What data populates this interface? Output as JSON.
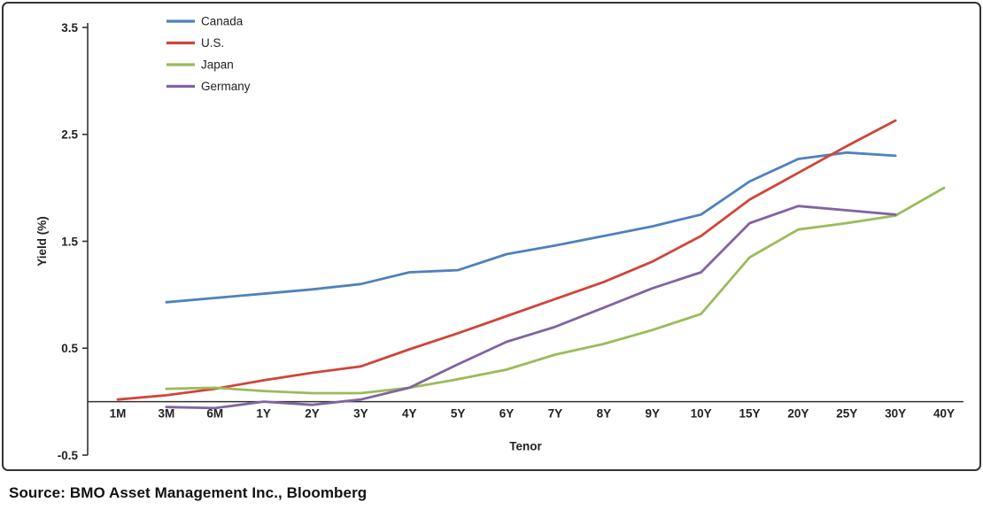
{
  "source": {
    "text": "Source: BMO Asset Management Inc., Bloomberg"
  },
  "chart_data": {
    "type": "line",
    "title": "",
    "xlabel": "Tenor",
    "ylabel": "Yield (%)",
    "ylim": [
      -0.5,
      3.5
    ],
    "yticks": [
      3.5,
      2.5,
      1.5,
      0.5,
      -0.5
    ],
    "grid": false,
    "legend_position": "top-left",
    "categories": [
      "1M",
      "3M",
      "6M",
      "1Y",
      "2Y",
      "3Y",
      "4Y",
      "5Y",
      "6Y",
      "7Y",
      "8Y",
      "9Y",
      "10Y",
      "15Y",
      "20Y",
      "25Y",
      "30Y",
      "40Y"
    ],
    "series": [
      {
        "name": "Canada",
        "color": "#4f81bd",
        "values": [
          null,
          0.93,
          0.97,
          1.01,
          1.05,
          1.1,
          1.21,
          1.23,
          1.38,
          1.46,
          1.55,
          1.64,
          1.75,
          2.06,
          2.27,
          2.33,
          2.3,
          null
        ]
      },
      {
        "name": "U.S.",
        "color": "#d0453a",
        "values": [
          0.02,
          0.06,
          0.12,
          0.2,
          0.27,
          0.33,
          0.49,
          0.64,
          0.8,
          0.96,
          1.12,
          1.31,
          1.55,
          1.89,
          2.14,
          2.39,
          2.63,
          null
        ]
      },
      {
        "name": "Japan",
        "color": "#9bbb59",
        "values": [
          null,
          0.12,
          0.13,
          0.1,
          0.08,
          0.08,
          0.13,
          0.21,
          0.3,
          0.44,
          0.54,
          0.67,
          0.82,
          1.35,
          1.61,
          1.67,
          1.74,
          2.0
        ]
      },
      {
        "name": "Germany",
        "color": "#8064a2",
        "values": [
          null,
          -0.05,
          -0.06,
          0.0,
          -0.03,
          0.02,
          0.13,
          0.35,
          0.56,
          0.7,
          0.88,
          1.06,
          1.21,
          1.67,
          1.83,
          1.79,
          1.75,
          null
        ]
      }
    ]
  }
}
